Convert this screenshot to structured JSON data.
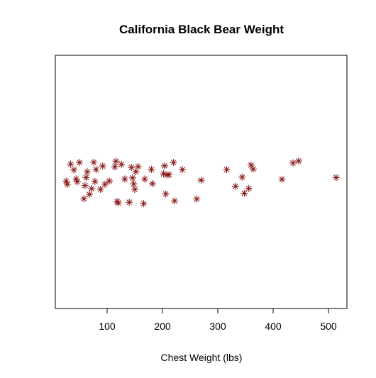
{
  "chart_data": {
    "type": "scatter",
    "title": "California Black Bear Weight",
    "xlabel": "Chest Weight (lbs)",
    "ylabel": "",
    "xlim": [
      10,
      530
    ],
    "x_ticks": [
      100,
      200,
      300,
      400,
      500
    ],
    "marker": "asterisk",
    "marker_color": "#8B1A1A",
    "grid": false,
    "jitter": "vertical",
    "series": [
      {
        "values": [
          26,
          28,
          34,
          40,
          44,
          46,
          50,
          58,
          60,
          62,
          64,
          68,
          72,
          76,
          78,
          80,
          88,
          92,
          96,
          104,
          114,
          116,
          118,
          120,
          126,
          132,
          140,
          144,
          146,
          148,
          150,
          152,
          156,
          166,
          168,
          180,
          182,
          202,
          204,
          206,
          208,
          212,
          220,
          222,
          236,
          262,
          270,
          316,
          332,
          344,
          348,
          356,
          360,
          364,
          416,
          436,
          446,
          514
        ]
      }
    ]
  }
}
